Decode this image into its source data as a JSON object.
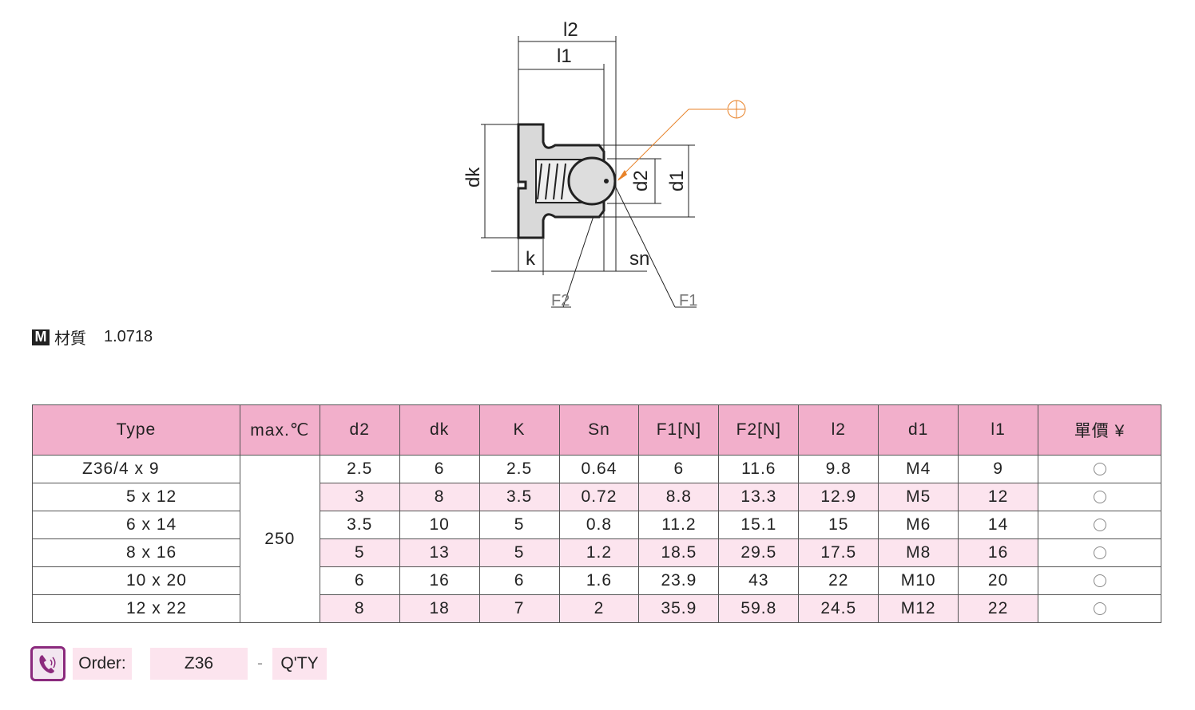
{
  "drawing": {
    "labels": {
      "l2": "l2",
      "l1": "l1",
      "dk": "dk",
      "d2": "d2",
      "d1": "d1",
      "k": "k",
      "sn": "sn",
      "f2": "F2",
      "f1": "F1"
    },
    "accent": "#e8832a"
  },
  "material": {
    "badge": "M",
    "label": "材質",
    "value": "1.0718"
  },
  "table": {
    "headers": [
      "Type",
      "max.℃",
      "d2",
      "dk",
      "K",
      "Sn",
      "F1[N]",
      "F2[N]",
      "l2",
      "d1",
      "l1",
      "單價 ¥"
    ],
    "max_temp": "250",
    "rows": [
      [
        "Z36/4 x 9",
        "2.5",
        "6",
        "2.5",
        "0.64",
        "6",
        "11.6",
        "9.8",
        "M4",
        "9"
      ],
      [
        "5 x 12",
        "3",
        "8",
        "3.5",
        "0.72",
        "8.8",
        "13.3",
        "12.9",
        "M5",
        "12"
      ],
      [
        "6 x 14",
        "3.5",
        "10",
        "5",
        "0.8",
        "11.2",
        "15.1",
        "15",
        "M6",
        "14"
      ],
      [
        "8 x 16",
        "5",
        "13",
        "5",
        "1.2",
        "18.5",
        "29.5",
        "17.5",
        "M8",
        "16"
      ],
      [
        "10 x 20",
        "6",
        "16",
        "6",
        "1.6",
        "23.9",
        "43",
        "22",
        "M10",
        "20"
      ],
      [
        "12 x 22",
        "8",
        "18",
        "7",
        "2",
        "35.9",
        "59.8",
        "24.5",
        "M12",
        "22"
      ]
    ],
    "header_color": "#f2afcb",
    "stripe_color": "#fce4ee"
  },
  "order": {
    "label": "Order:",
    "code": "Z36",
    "sep": "-",
    "qty": "Q'TY",
    "icon": "phone-icon"
  }
}
